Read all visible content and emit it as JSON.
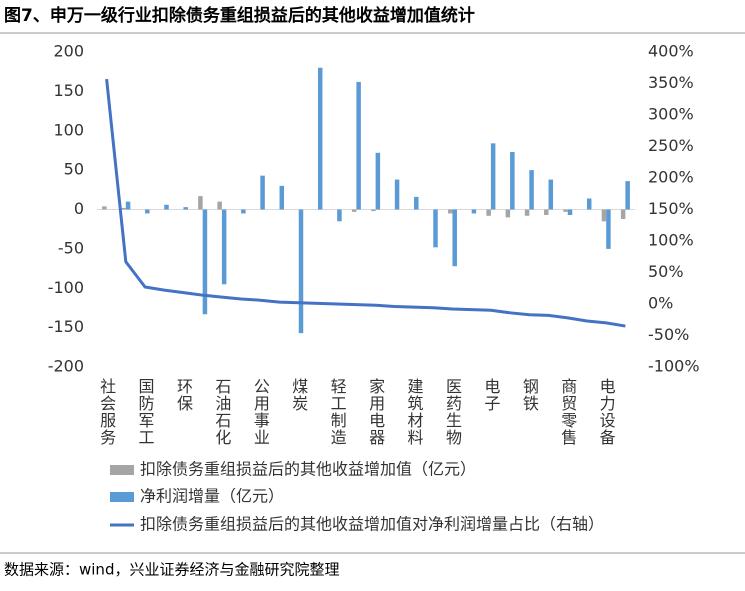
{
  "chart_data": {
    "type": "bar",
    "title": "图7、申万一级行业扣除债务重组损益后的其他收益增加值统计",
    "source": "数据来源：wind，兴业证券经济与金融研究院整理",
    "categories": [
      "社会服务",
      null,
      "国防军工",
      null,
      "环保",
      null,
      "石油石化",
      null,
      "公用事业",
      null,
      "煤炭",
      null,
      "轻工制造",
      null,
      "家用电器",
      null,
      "建筑材料",
      null,
      "医药生物",
      null,
      "电子",
      null,
      "钢铁",
      null,
      "商贸零售",
      null,
      "电力设备",
      null
    ],
    "series": [
      {
        "name": "扣除债务重组损益后的其他收益增加值（亿元）",
        "type": "bar",
        "color": "#a5a5a5",
        "values": [
          4,
          2,
          0,
          0,
          0,
          17,
          10,
          0,
          0,
          0,
          0,
          0,
          0,
          -3,
          -2,
          0,
          0,
          0,
          -5,
          0,
          -8,
          -10,
          -8,
          -7,
          -3,
          0,
          -15,
          -12
        ]
      },
      {
        "name": "净利润增量（亿元）",
        "type": "bar",
        "color": "#5b9bd5",
        "values": [
          0,
          10,
          -5,
          6,
          3,
          -133,
          -95,
          -5,
          43,
          30,
          -157,
          180,
          -15,
          162,
          72,
          38,
          16,
          -48,
          -72,
          -5,
          84,
          73,
          50,
          38,
          -7,
          14,
          -50,
          36
        ]
      },
      {
        "name": "扣除债务重组损益后的其他收益增加值对净利润增量占比（右轴）",
        "type": "line",
        "axis": "y2",
        "color": "#4472c4",
        "values": [
          357,
          67,
          27,
          22,
          18,
          14,
          11,
          8,
          6,
          3,
          2,
          1,
          0,
          -1,
          -2,
          -4,
          -5,
          -6,
          -8,
          -9,
          -10,
          -14,
          -17,
          -18,
          -22,
          -27,
          -30,
          -35
        ]
      }
    ],
    "ylim": [
      -200,
      200
    ],
    "yticks": [
      -200,
      -150,
      -100,
      -50,
      0,
      50,
      100,
      150,
      200
    ],
    "y2lim": [
      -100,
      400
    ],
    "y2ticks": [
      {
        "value": -100,
        "label": "-100%"
      },
      {
        "value": -50,
        "label": "-50%"
      },
      {
        "value": 0,
        "label": "0%"
      },
      {
        "value": 50,
        "label": "50%"
      },
      {
        "value": 100,
        "label": "100%"
      },
      {
        "value": 150,
        "label": "150%"
      },
      {
        "value": 200,
        "label": "200%"
      },
      {
        "value": 250,
        "label": "250%"
      },
      {
        "value": 300,
        "label": "300%"
      },
      {
        "value": 350,
        "label": "350%"
      },
      {
        "value": 400,
        "label": "400%"
      }
    ]
  }
}
